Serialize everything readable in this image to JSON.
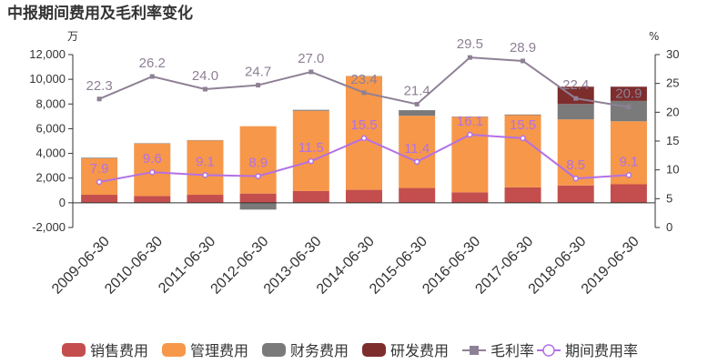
{
  "chart_data": {
    "type": "bar",
    "title": "中报期间费用及毛利率变化",
    "left_unit": "万",
    "right_unit": "%",
    "categories": [
      "2009-06-30",
      "2010-06-30",
      "2011-06-30",
      "2012-06-30",
      "2013-06-30",
      "2014-06-30",
      "2015-06-30",
      "2016-06-30",
      "2017-06-30",
      "2018-06-30",
      "2019-06-30"
    ],
    "left_axis": {
      "min": -2000,
      "max": 12000,
      "ticks": [
        -2000,
        0,
        2000,
        4000,
        6000,
        8000,
        10000,
        12000
      ],
      "tick_labels": [
        "-2,000",
        "0",
        "2,000",
        "4,000",
        "6,000",
        "8,000",
        "10,000",
        "12,000"
      ]
    },
    "right_axis": {
      "min": 0,
      "max": 30,
      "ticks": [
        0,
        5,
        10,
        15,
        20,
        25,
        30
      ],
      "tick_labels": [
        "0",
        "5",
        "10",
        "15",
        "20",
        "25",
        "30"
      ]
    },
    "bar_series": [
      {
        "name": "销售费用",
        "color": "#c44e4d",
        "values": [
          650,
          550,
          650,
          750,
          950,
          1050,
          1200,
          850,
          1250,
          1400,
          1500
        ]
      },
      {
        "name": "管理费用",
        "color": "#f6974a",
        "values": [
          2950,
          4250,
          4400,
          5450,
          6500,
          9200,
          5850,
          6100,
          5850,
          5350,
          5100
        ]
      },
      {
        "name": "财务费用",
        "color": "#7a7a7a",
        "values": [
          50,
          30,
          30,
          -550,
          80,
          20,
          450,
          30,
          50,
          1250,
          1650
        ]
      },
      {
        "name": "研发费用",
        "color": "#7e2d2d",
        "values": [
          0,
          0,
          0,
          0,
          0,
          0,
          0,
          0,
          0,
          1400,
          1150
        ]
      }
    ],
    "line_series": [
      {
        "name": "毛利率",
        "color": "#8e8095",
        "marker": "square",
        "values": [
          22.3,
          26.2,
          24.0,
          24.7,
          27.0,
          23.4,
          21.4,
          29.5,
          28.9,
          22.4,
          20.9
        ],
        "labels": [
          "22.3",
          "26.2",
          "24.0",
          "24.7",
          "27.0",
          "23.4",
          "21.4",
          "29.5",
          "28.9",
          "22.4",
          "20.9"
        ]
      },
      {
        "name": "期间费用率",
        "color": "#b370e6",
        "marker": "circle",
        "values": [
          7.9,
          9.6,
          9.1,
          8.9,
          11.5,
          15.5,
          11.4,
          16.1,
          15.5,
          8.5,
          9.1
        ],
        "labels": [
          "7.9",
          "9.6",
          "9.1",
          "8.9",
          "11.5",
          "15.5",
          "11.4",
          "16.1",
          "15.5",
          "8.5",
          "9.1"
        ]
      }
    ],
    "grid": false,
    "legend_position": "bottom"
  }
}
